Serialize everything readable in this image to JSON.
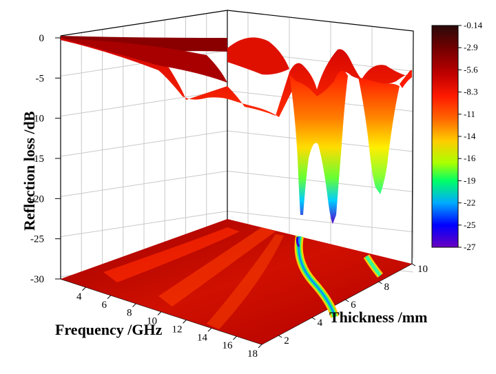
{
  "chart_data": {
    "type": "surface3d",
    "title": "",
    "xlabel": "Frequency /GHz",
    "ylabel": "Thickness /mm",
    "zlabel": "Reflection loss /dB",
    "x_ticks": [
      "4",
      "6",
      "8",
      "10",
      "12",
      "14",
      "16",
      "18"
    ],
    "y_ticks": [
      "2",
      "4",
      "6",
      "8",
      "10"
    ],
    "z_ticks": [
      "0",
      "-5",
      "-10",
      "-15",
      "-20",
      "-25",
      "-30"
    ],
    "xlim": [
      2,
      18
    ],
    "ylim": [
      1,
      10
    ],
    "zlim": [
      -30,
      0
    ],
    "grid": true,
    "projection_on_floor": true,
    "colorbar": {
      "labels": [
        "-0.14",
        "-2.9",
        "-5.6",
        "-8.3",
        "-11",
        "-14",
        "-16",
        "-19",
        "-22",
        "-25",
        "-27"
      ],
      "colors": [
        "#2a0a0a",
        "#700000",
        "#c00000",
        "#ff1a00",
        "#ff6600",
        "#ffcc00",
        "#aaff00",
        "#00ff66",
        "#00aaff",
        "#0000ff",
        "#6a00c0"
      ]
    },
    "min_reflection_loss": -27,
    "absorption_peak_ridges": [
      {
        "min_dB": -27,
        "thickness_range": [
          1.5,
          10
        ]
      },
      {
        "min_dB": -19,
        "thickness_range": [
          7,
          10
        ]
      }
    ]
  }
}
